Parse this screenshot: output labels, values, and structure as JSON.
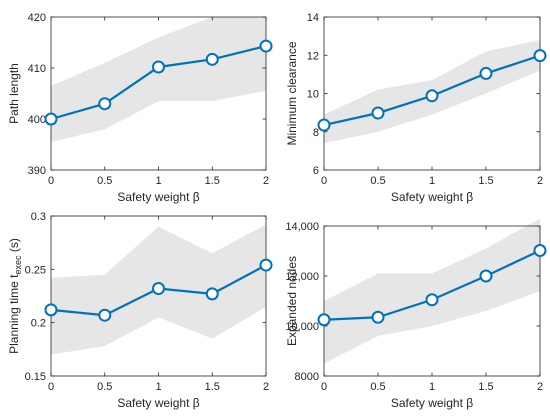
{
  "chart_data": [
    {
      "type": "line",
      "x": [
        0,
        0.5,
        1,
        1.5,
        2
      ],
      "series": [
        {
          "values": [
            400,
            403,
            410.2,
            411.7,
            414.3
          ]
        }
      ],
      "band": {
        "lower": [
          395.5,
          398,
          403.5,
          403.5,
          405.5
        ],
        "upper": [
          406.5,
          411,
          416,
          420,
          420
        ]
      },
      "xlabel": "Safety weight β",
      "ylabel": "Path length",
      "xlim": [
        0,
        2
      ],
      "ylim": [
        390,
        420
      ],
      "xticks": [
        0,
        0.5,
        1,
        1.5,
        2
      ],
      "xtick_labels": [
        "0",
        "0.5",
        "1",
        "1.5",
        "2"
      ],
      "yticks": [
        390,
        400,
        410,
        420
      ],
      "ytick_labels": [
        "390",
        "400",
        "410",
        "420"
      ]
    },
    {
      "type": "line",
      "x": [
        0,
        0.5,
        1,
        1.5,
        2
      ],
      "series": [
        {
          "values": [
            8.35,
            8.98,
            9.88,
            11.05,
            11.98
          ]
        }
      ],
      "band": {
        "lower": [
          7.4,
          8.0,
          8.9,
          10.0,
          11.2
        ],
        "upper": [
          8.9,
          10.2,
          10.7,
          12.2,
          12.8
        ]
      },
      "xlabel": "Safety weight β",
      "ylabel": "Minimum clearance",
      "xlim": [
        0,
        2
      ],
      "ylim": [
        6,
        14
      ],
      "xticks": [
        0,
        0.5,
        1,
        1.5,
        2
      ],
      "xtick_labels": [
        "0",
        "0.5",
        "1",
        "1.5",
        "2"
      ],
      "yticks": [
        6,
        8,
        10,
        12,
        14
      ],
      "ytick_labels": [
        "6",
        "8",
        "10",
        "12",
        "14"
      ]
    },
    {
      "type": "line",
      "x": [
        0,
        0.5,
        1,
        1.5,
        2
      ],
      "series": [
        {
          "values": [
            0.212,
            0.207,
            0.232,
            0.227,
            0.254
          ]
        }
      ],
      "band": {
        "lower": [
          0.17,
          0.178,
          0.205,
          0.185,
          0.215
        ],
        "upper": [
          0.242,
          0.245,
          0.29,
          0.265,
          0.292
        ]
      },
      "xlabel": "Safety weight β",
      "ylabel_main": "Planning time t",
      "ylabel_sub": "exec",
      "ylabel_unit": " (s)",
      "xlim": [
        0,
        2
      ],
      "ylim": [
        0.15,
        0.3
      ],
      "xticks": [
        0,
        0.5,
        1,
        1.5,
        2
      ],
      "xtick_labels": [
        "0",
        "0.5",
        "1",
        "1.5",
        "2"
      ],
      "yticks": [
        0.15,
        0.2,
        0.25,
        0.3
      ],
      "ytick_labels": [
        "0.15",
        "0.2",
        "0.25",
        "0.3"
      ]
    },
    {
      "type": "line",
      "x": [
        0,
        0.5,
        1,
        1.5,
        2
      ],
      "series": [
        {
          "values": [
            10250,
            10350,
            11050,
            12000,
            13020
          ]
        }
      ],
      "band": {
        "lower": [
          8500,
          9600,
          10000,
          10600,
          11400
        ],
        "upper": [
          11000,
          12100,
          12100,
          13100,
          14300
        ]
      },
      "xlabel": "Safety weight β",
      "ylabel": "Expanded nodes",
      "xlim": [
        0,
        2
      ],
      "ylim": [
        8000,
        14000
      ],
      "xticks": [
        0,
        0.5,
        1,
        1.5,
        2
      ],
      "xtick_labels": [
        "0",
        "0.5",
        "1",
        "1.5",
        "2"
      ],
      "yticks": [
        8000,
        10000,
        12000,
        14000
      ],
      "ytick_labels": [
        "8000",
        "10,000",
        "12,000",
        "14,000"
      ]
    }
  ],
  "colors": {
    "line": "#0072BD",
    "band": "#e6e6e6",
    "axis": "#262626",
    "marker_fill": "#ffffff"
  }
}
